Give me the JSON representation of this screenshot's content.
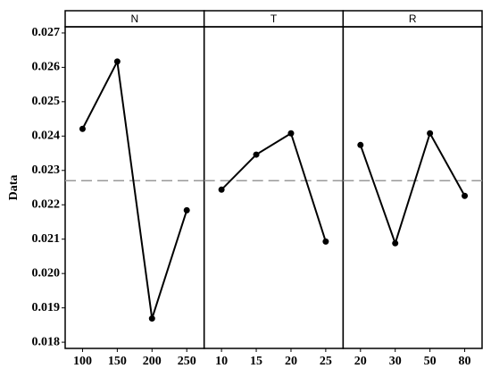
{
  "chart_data": [
    {
      "type": "line",
      "title": "N",
      "ylabel": "Data",
      "categories": [
        "100",
        "150",
        "200",
        "250"
      ],
      "values": [
        0.02421,
        0.02617,
        0.01869,
        0.02184
      ],
      "color": "#000000",
      "hline": 0.0227,
      "ylim": [
        0.01782,
        0.02718
      ],
      "yticks": [
        0.018,
        0.019,
        {
          "value": 0.02,
          "label": "0.020"
        },
        0.021,
        0.022,
        0.023,
        0.024,
        0.025,
        0.026,
        0.027
      ]
    },
    {
      "type": "line",
      "title": "T",
      "categories": [
        "10",
        "15",
        "20",
        "25"
      ],
      "values": [
        0.02244,
        0.02346,
        0.02408,
        0.02093
      ],
      "color": "#000000",
      "hline": 0.0227,
      "ylim": [
        0.01782,
        0.02718
      ]
    },
    {
      "type": "line",
      "title": "R",
      "categories": [
        "20",
        "30",
        "50",
        "80"
      ],
      "values": [
        0.02374,
        0.02088,
        0.02408,
        0.02226
      ],
      "color": "#000000",
      "hline": 0.0227,
      "ylim": [
        0.01782,
        0.02718
      ]
    }
  ]
}
